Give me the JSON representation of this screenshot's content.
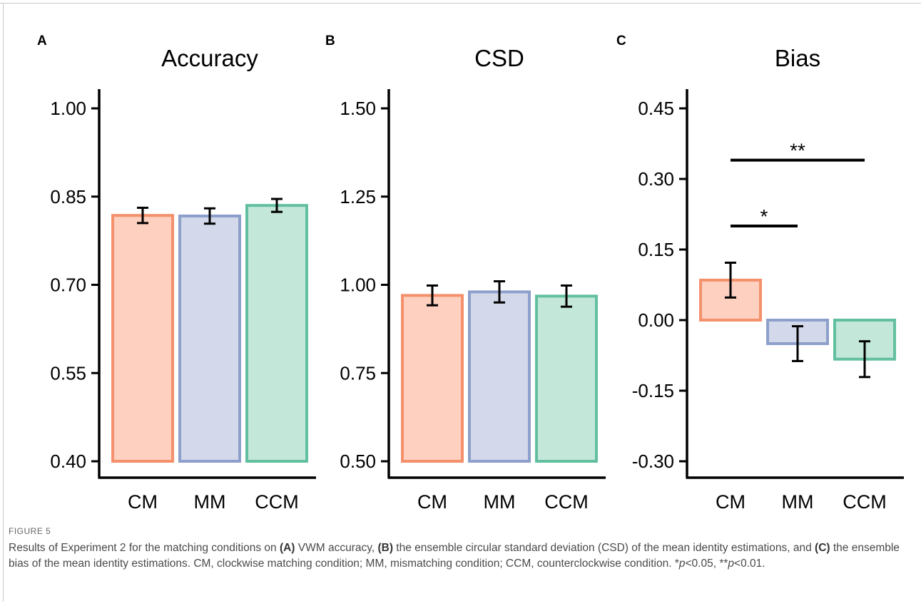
{
  "figure_label": "FIGURE 5",
  "caption": {
    "p1": "Results of Experiment 2 for the matching conditions on ",
    "a": "(A)",
    "p2": " VWM accuracy, ",
    "b": "(B)",
    "p3": " the ensemble circular standard deviation (CSD) of the mean identity estimations, and ",
    "c": "(C)",
    "p4": " the ensemble bias of the mean identity estimations. CM, clockwise matching condition; MM, mismatching condition; CCM, counterclockwise condition. *",
    "pvar1": "p",
    "p5": "<0.05, **",
    "pvar2": "p",
    "p6": "<0.01."
  },
  "colors": {
    "CM_fill": "#fdd0c0",
    "CM_stroke": "#f4916c",
    "MM_fill": "#d3d8ea",
    "MM_stroke": "#8d9fcb",
    "CCM_fill": "#c3e7d9",
    "CCM_stroke": "#62c0a0",
    "axis": "#000000"
  },
  "chart_data": [
    {
      "type": "bar",
      "panel": "A",
      "title": "Accuracy",
      "categories": [
        "CM",
        "MM",
        "CCM"
      ],
      "values": [
        0.818,
        0.817,
        0.835
      ],
      "errors": [
        0.013,
        0.013,
        0.011
      ],
      "ylim": [
        0.4,
        1.0
      ],
      "yticks": [
        0.4,
        0.55,
        0.7,
        0.85,
        1.0
      ],
      "ytick_labels": [
        "0.40",
        "0.55",
        "0.70",
        "0.85",
        "1.00"
      ],
      "baseline": 0.4,
      "significance": []
    },
    {
      "type": "bar",
      "panel": "B",
      "title": "CSD",
      "categories": [
        "CM",
        "MM",
        "CCM"
      ],
      "values": [
        0.97,
        0.98,
        0.968
      ],
      "errors": [
        0.028,
        0.03,
        0.03
      ],
      "ylim": [
        0.5,
        1.5
      ],
      "yticks": [
        0.5,
        0.75,
        1.0,
        1.25,
        1.5
      ],
      "ytick_labels": [
        "0.50",
        "0.75",
        "1.00",
        "1.25",
        "1.50"
      ],
      "baseline": 0.5,
      "significance": []
    },
    {
      "type": "bar",
      "panel": "C",
      "title": "Bias",
      "categories": [
        "CM",
        "MM",
        "CCM"
      ],
      "values": [
        0.085,
        -0.05,
        -0.083
      ],
      "errors": [
        0.037,
        0.037,
        0.038
      ],
      "ylim": [
        -0.3,
        0.45
      ],
      "yticks": [
        -0.3,
        -0.15,
        0.0,
        0.15,
        0.3,
        0.45
      ],
      "ytick_labels": [
        "-0.30",
        "-0.15",
        "0.00",
        "0.15",
        "0.30",
        "0.45"
      ],
      "baseline": 0.0,
      "significance": [
        {
          "from": 0,
          "to": 1,
          "y": 0.2,
          "label": "*"
        },
        {
          "from": 0,
          "to": 2,
          "y": 0.34,
          "label": "**"
        }
      ]
    }
  ]
}
